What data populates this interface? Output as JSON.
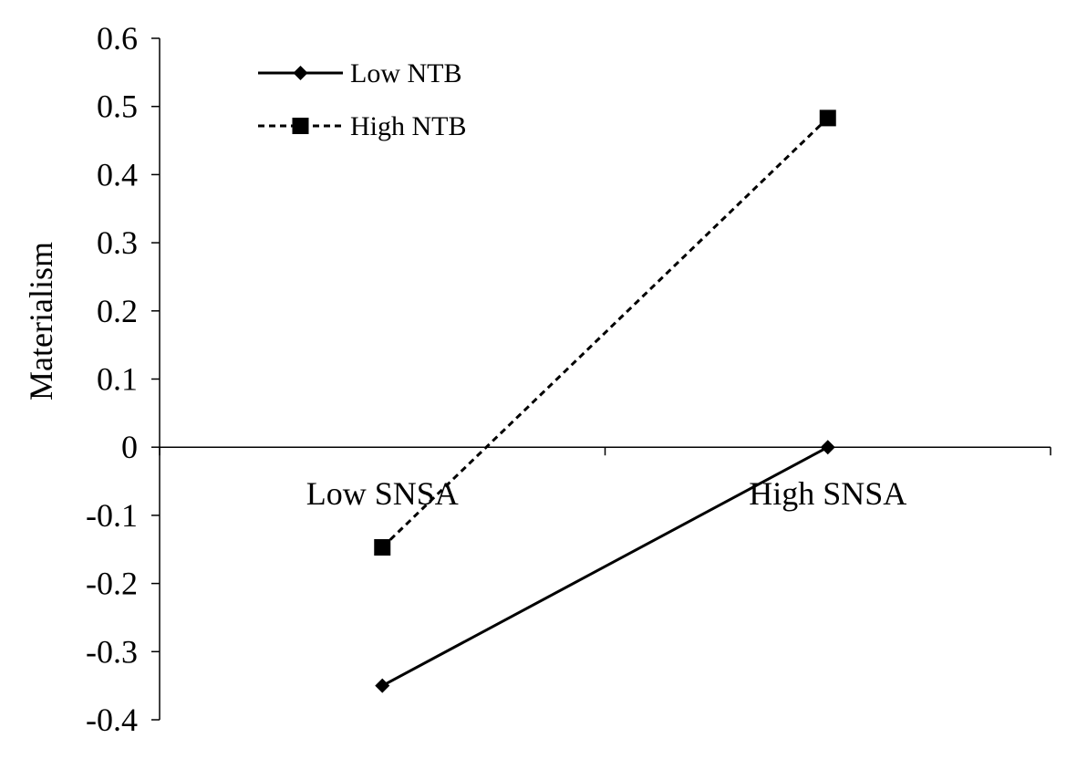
{
  "chart_data": {
    "type": "line",
    "categories": [
      "Low SNSA",
      "High SNSA"
    ],
    "series": [
      {
        "name": "Low NTB",
        "values": [
          -0.35,
          0.0
        ],
        "marker": "diamond",
        "line": "solid",
        "color": "#000000"
      },
      {
        "name": "High NTB",
        "values": [
          -0.147,
          0.483
        ],
        "marker": "square",
        "line": "dashed",
        "color": "#000000"
      }
    ],
    "title": "",
    "xlabel": "",
    "ylabel": "Materialism",
    "ylim": [
      -0.4,
      0.6
    ],
    "yticks": [
      "0.6",
      "0.5",
      "0.4",
      "0.3",
      "0.2",
      "0.1",
      "0",
      "-0.1",
      "-0.2",
      "-0.3",
      "-0.4"
    ],
    "ytick_values": [
      0.6,
      0.5,
      0.4,
      0.3,
      0.2,
      0.1,
      0,
      -0.1,
      -0.2,
      -0.3,
      -0.4
    ],
    "grid": false,
    "legend_position": "top-left"
  }
}
